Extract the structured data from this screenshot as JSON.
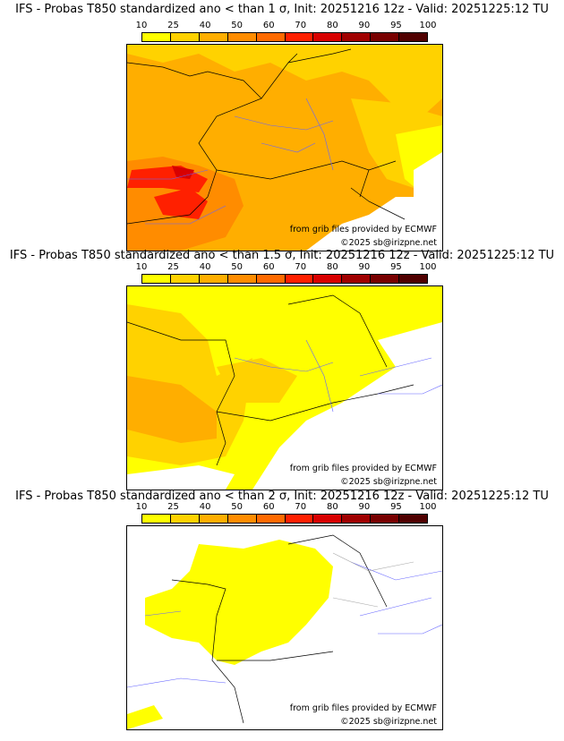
{
  "colorbar": {
    "ticks": [
      "10",
      "25",
      "40",
      "50",
      "60",
      "70",
      "80",
      "90",
      "95",
      "100"
    ],
    "colors": [
      "#ffff00",
      "#ffd200",
      "#ffae00",
      "#ff8c00",
      "#ff6a00",
      "#ff2000",
      "#d80000",
      "#a00000",
      "#780000",
      "#500000"
    ]
  },
  "panels": [
    {
      "title": "IFS - Probas T850  standardized ano < than 1 σ, Init: 20251216 12z - Valid: 20251225:12 TU",
      "credit_source": "from grib files provided by ECMWF",
      "credit_copyright": "©2025 sb@irizpne.net"
    },
    {
      "title": "IFS - Probas T850  standardized ano < than 1.5 σ, Init: 20251216 12z - Valid: 20251225:12 TU",
      "credit_source": "from grib files provided by ECMWF",
      "credit_copyright": "©2025 sb@irizpne.net"
    },
    {
      "title": "IFS - Probas T850  standardized ano < than 2 σ, Init: 20251216 12z - Valid: 20251225:12 TU",
      "credit_source": "from grib files provided by ECMWF",
      "credit_copyright": "©2025 sb@irizpne.net"
    }
  ]
}
